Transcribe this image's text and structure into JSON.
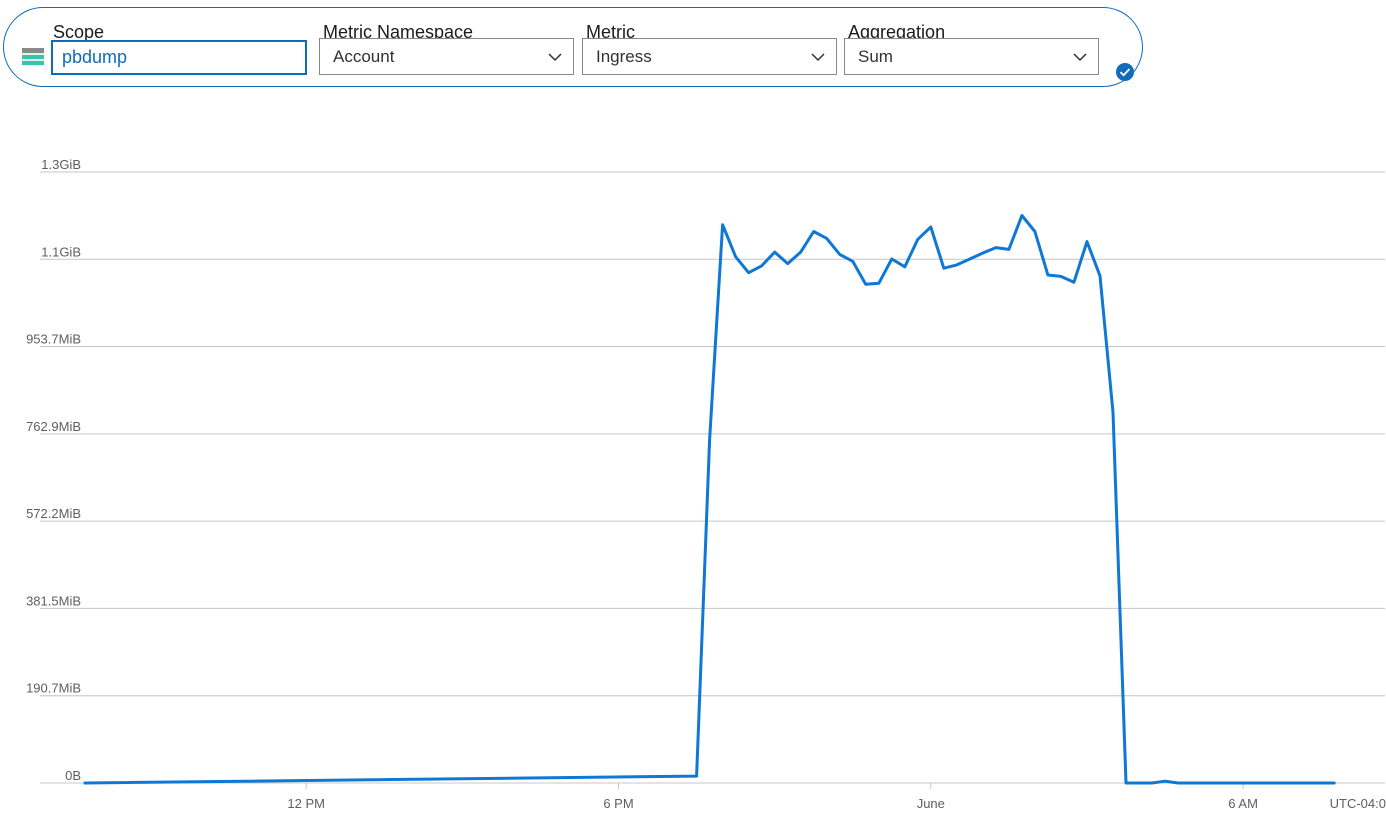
{
  "selector": {
    "scope": {
      "label": "Scope",
      "value": "pbdump",
      "icon": "storage-account-icon"
    },
    "namespace": {
      "label": "Metric Namespace",
      "value": "Account"
    },
    "metric": {
      "label": "Metric",
      "value": "Ingress"
    },
    "aggregation": {
      "label": "Aggregation",
      "value": "Sum"
    },
    "apply_icon": "checkmark-circle-icon"
  },
  "colors": {
    "accent": "#0f6cbd",
    "series": "#0f78d4",
    "grid": "#c8c6c4"
  },
  "chart_data": {
    "type": "line",
    "title": "",
    "xlabel": "",
    "ylabel": "",
    "timezone_label": "UTC-04:0",
    "y_ticks": [
      {
        "label": "0B",
        "value": 0
      },
      {
        "label": "190.7MiB",
        "value": 190.7
      },
      {
        "label": "381.5MiB",
        "value": 381.5
      },
      {
        "label": "572.2MiB",
        "value": 572.2
      },
      {
        "label": "762.9MiB",
        "value": 762.9
      },
      {
        "label": "953.7MiB",
        "value": 953.7
      },
      {
        "label": "1.1GiB",
        "value": 1144.4
      },
      {
        "label": "1.3GiB",
        "value": 1335.1
      }
    ],
    "ylim_mib": [
      0,
      1335.1
    ],
    "x_ticks": [
      {
        "label": "12 PM",
        "hours": 12
      },
      {
        "label": "6 PM",
        "hours": 18
      },
      {
        "label": "June",
        "hours": 24
      },
      {
        "label": "6 AM",
        "hours": 30
      }
    ],
    "xlim_hours": [
      7.75,
      31.9
    ],
    "series": [
      {
        "unit": "MiB",
        "x_hours": [
          7.75,
          19.5,
          19.75,
          20.0,
          20.25,
          20.5,
          20.75,
          21.0,
          21.25,
          21.5,
          21.75,
          22.0,
          22.25,
          22.5,
          22.75,
          23.0,
          23.25,
          23.5,
          23.75,
          24.0,
          24.25,
          24.5,
          24.75,
          25.0,
          25.25,
          25.5,
          25.75,
          26.0,
          26.25,
          26.5,
          26.75,
          27.0,
          27.25,
          27.5,
          27.75,
          28.0,
          28.25,
          28.5,
          28.75,
          29.0,
          29.25,
          29.5,
          29.75,
          30.0,
          30.25,
          31.75
        ],
        "y_mib": [
          0,
          15,
          750,
          1220,
          1150,
          1115,
          1130,
          1160,
          1135,
          1160,
          1205,
          1190,
          1155,
          1140,
          1090,
          1092,
          1145,
          1128,
          1188,
          1215,
          1125,
          1132,
          1145,
          1158,
          1170,
          1166,
          1240,
          1205,
          1110,
          1107,
          1094,
          1183,
          1108,
          810,
          0,
          0,
          0,
          4,
          0,
          0,
          0,
          0,
          0,
          0,
          0,
          0
        ]
      }
    ]
  }
}
